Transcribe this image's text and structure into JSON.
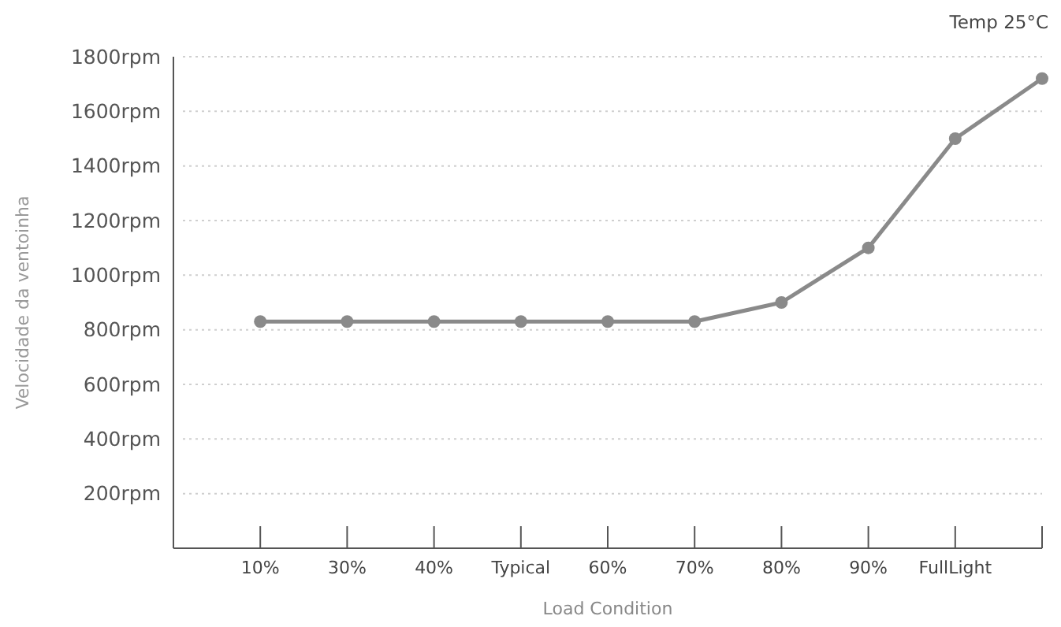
{
  "chart_data": {
    "type": "line",
    "xlabel": "Load Condition",
    "ylabel": "Velocidade da ventoinha",
    "annotations": [
      "Temp 25°C"
    ],
    "categories": [
      "10%",
      "30%",
      "40%",
      "Typical",
      "60%",
      "70%",
      "80%",
      "90%",
      "FullLight",
      null
    ],
    "series": [
      {
        "color": "#8a8a8a",
        "values": [
          830,
          830,
          830,
          830,
          830,
          830,
          900,
          1100,
          1500,
          1720
        ]
      }
    ],
    "ylim": [
      0,
      1800
    ],
    "yticks": [
      {
        "value": 200,
        "label": "200rpm"
      },
      {
        "value": 400,
        "label": "400rpm"
      },
      {
        "value": 600,
        "label": "600rpm"
      },
      {
        "value": 800,
        "label": "800rpm"
      },
      {
        "value": 1000,
        "label": "1000rpm"
      },
      {
        "value": 1200,
        "label": "1200rpm"
      },
      {
        "value": 1400,
        "label": "1400rpm"
      },
      {
        "value": 1600,
        "label": "1600rpm"
      },
      {
        "value": 1800,
        "label": "1800rpm"
      }
    ],
    "grid": "y",
    "marker": "circle",
    "line_style": "solid"
  }
}
